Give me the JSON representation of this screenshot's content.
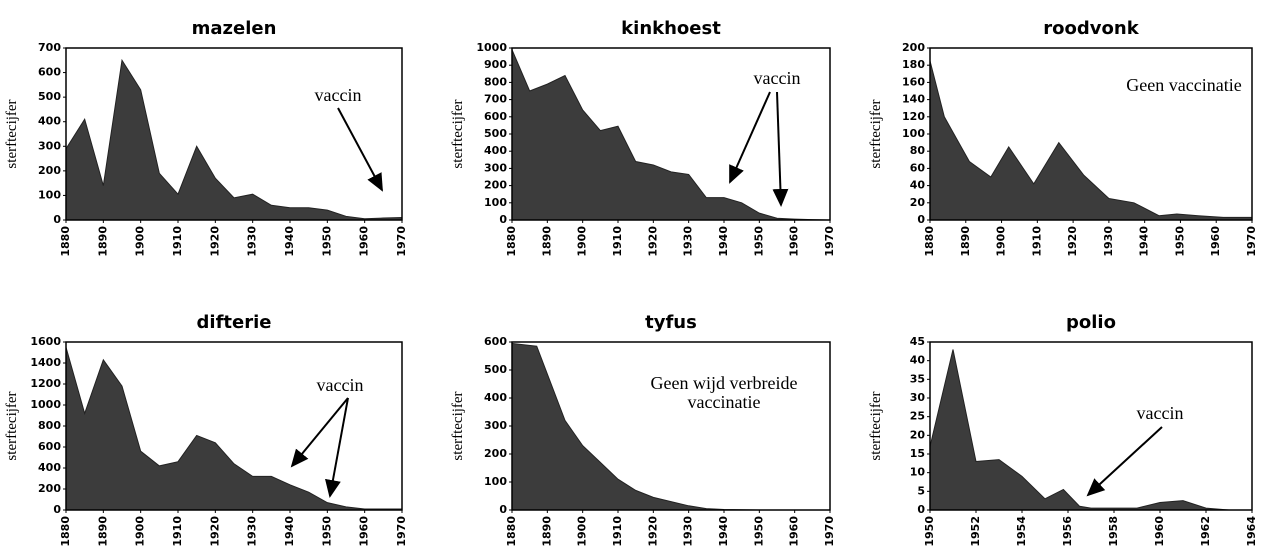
{
  "chart_data": [
    {
      "type": "area",
      "title": "mazelen",
      "y_label": "sterftecijfer",
      "color": "#3c3c3c",
      "x": [
        1880,
        1885,
        1890,
        1895,
        1900,
        1905,
        1910,
        1915,
        1920,
        1925,
        1930,
        1935,
        1940,
        1945,
        1950,
        1955,
        1960,
        1965,
        1970
      ],
      "values": [
        290,
        410,
        140,
        650,
        530,
        190,
        105,
        300,
        170,
        90,
        105,
        60,
        50,
        50,
        40,
        15,
        5,
        8,
        10
      ],
      "xlim": [
        1880,
        1970
      ],
      "xticks": [
        1880,
        1890,
        1900,
        1910,
        1920,
        1930,
        1940,
        1950,
        1960,
        1970
      ],
      "ylim": [
        0,
        700
      ],
      "yticks": [
        0,
        100,
        200,
        300,
        400,
        500,
        600,
        700
      ],
      "annotations": [
        "vaccin"
      ]
    },
    {
      "type": "area",
      "title": "kinkhoest",
      "y_label": "sterftecijfer",
      "color": "#3c3c3c",
      "x": [
        1880,
        1885,
        1890,
        1895,
        1900,
        1905,
        1910,
        1915,
        1920,
        1925,
        1930,
        1935,
        1940,
        1945,
        1950,
        1955,
        1960,
        1965,
        1970
      ],
      "values": [
        990,
        750,
        790,
        840,
        640,
        520,
        545,
        340,
        320,
        280,
        265,
        130,
        130,
        100,
        40,
        10,
        5,
        2,
        0
      ],
      "xlim": [
        1880,
        1970
      ],
      "xticks": [
        1880,
        1890,
        1900,
        1910,
        1920,
        1930,
        1940,
        1950,
        1960,
        1970
      ],
      "ylim": [
        0,
        1000
      ],
      "yticks": [
        0,
        100,
        200,
        300,
        400,
        500,
        600,
        700,
        800,
        900,
        1000
      ],
      "annotations": [
        "vaccin"
      ]
    },
    {
      "type": "area",
      "title": "roodvonk",
      "y_label": "sterftecijfer",
      "color": "#3c3c3c",
      "x": [
        1880,
        1884,
        1891,
        1897,
        1902,
        1909,
        1916,
        1923,
        1930,
        1937,
        1944,
        1949,
        1955,
        1962,
        1970
      ],
      "values": [
        185,
        120,
        68,
        50,
        85,
        42,
        90,
        52,
        25,
        20,
        5,
        7,
        5,
        3,
        3
      ],
      "xlim": [
        1880,
        1970
      ],
      "xticks": [
        1880,
        1890,
        1900,
        1910,
        1920,
        1930,
        1940,
        1950,
        1960,
        1970
      ],
      "ylim": [
        0,
        200
      ],
      "yticks": [
        0,
        20,
        40,
        60,
        80,
        100,
        120,
        140,
        160,
        180,
        200
      ],
      "annotations": [
        "Geen vaccinatie"
      ]
    },
    {
      "type": "area",
      "title": "difterie",
      "y_label": "sterftecijfer",
      "color": "#3c3c3c",
      "x": [
        1880,
        1885,
        1890,
        1895,
        1900,
        1905,
        1910,
        1915,
        1920,
        1925,
        1930,
        1935,
        1940,
        1945,
        1950,
        1955,
        1960,
        1965,
        1970
      ],
      "values": [
        1550,
        920,
        1430,
        1180,
        560,
        420,
        460,
        710,
        640,
        440,
        320,
        320,
        240,
        170,
        70,
        30,
        10,
        10,
        10
      ],
      "xlim": [
        1880,
        1970
      ],
      "xticks": [
        1880,
        1890,
        1900,
        1910,
        1920,
        1930,
        1940,
        1950,
        1960,
        1970
      ],
      "ylim": [
        0,
        1600
      ],
      "yticks": [
        0,
        200,
        400,
        600,
        800,
        1000,
        1200,
        1400,
        1600
      ],
      "annotations": [
        "vaccin"
      ]
    },
    {
      "type": "area",
      "title": "tyfus",
      "y_label": "sterftecijfer",
      "color": "#3c3c3c",
      "x": [
        1880,
        1887,
        1895,
        1900,
        1905,
        1910,
        1915,
        1920,
        1925,
        1930,
        1935,
        1940,
        1950,
        1970
      ],
      "values": [
        595,
        585,
        320,
        230,
        170,
        110,
        70,
        45,
        30,
        15,
        5,
        2,
        0,
        0
      ],
      "xlim": [
        1880,
        1970
      ],
      "xticks": [
        1880,
        1890,
        1900,
        1910,
        1920,
        1930,
        1940,
        1950,
        1960,
        1970
      ],
      "ylim": [
        0,
        600
      ],
      "yticks": [
        0,
        100,
        200,
        300,
        400,
        500,
        600
      ],
      "annotations": [
        "Geen wijd verbreide",
        "vaccinatie"
      ]
    },
    {
      "type": "area",
      "title": "polio",
      "y_label": "sterftecijfer",
      "color": "#3c3c3c",
      "x": [
        1950,
        1951,
        1952,
        1953,
        1954,
        1955,
        1955.8,
        1956.5,
        1957,
        1958,
        1959,
        1960,
        1961,
        1962,
        1963,
        1964
      ],
      "values": [
        17,
        43,
        13,
        13.5,
        9,
        3,
        5.5,
        1,
        0.5,
        0.5,
        0.5,
        2,
        2.5,
        0.5,
        0,
        0
      ],
      "xlim": [
        1950,
        1964
      ],
      "xticks": [
        1950,
        1952,
        1954,
        1956,
        1958,
        1960,
        1962,
        1964
      ],
      "ylim": [
        0,
        45
      ],
      "yticks": [
        0,
        5,
        10,
        15,
        20,
        25,
        30,
        35,
        40,
        45
      ],
      "annotations": [
        "vaccin"
      ]
    }
  ]
}
